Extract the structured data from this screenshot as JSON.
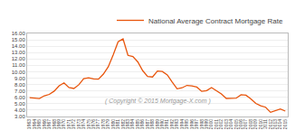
{
  "chart_data": {
    "type": "line",
    "annotations": [
      "( Copyright © 2015 Mortgage-X.com )"
    ],
    "x": [
      1963,
      1964,
      1965,
      1966,
      1967,
      1968,
      1969,
      1970,
      1971,
      1972,
      1973,
      1974,
      1975,
      1976,
      1977,
      1978,
      1979,
      1980,
      1981,
      1982,
      1983,
      1984,
      1985,
      1986,
      1987,
      1988,
      1989,
      1990,
      1991,
      1992,
      1993,
      1994,
      1995,
      1996,
      1997,
      1998,
      1999,
      2000,
      2001,
      2002,
      2003,
      2004,
      2005,
      2006,
      2007,
      2008,
      2009,
      2010,
      2011,
      2012,
      2013,
      2014,
      2015
    ],
    "series": [
      {
        "name": "National Average Contract Mortgage Rate",
        "color": "#e8550c",
        "values": [
          5.94,
          5.83,
          5.81,
          6.25,
          6.46,
          6.97,
          7.81,
          8.27,
          7.54,
          7.38,
          7.96,
          8.92,
          9.05,
          8.87,
          8.85,
          9.64,
          10.78,
          12.66,
          14.7,
          15.14,
          12.57,
          12.38,
          11.55,
          10.17,
          9.28,
          9.19,
          10.11,
          10.05,
          9.51,
          8.39,
          7.33,
          7.49,
          7.87,
          7.8,
          7.6,
          6.94,
          7.04,
          7.52,
          6.97,
          6.54,
          5.83,
          5.84,
          5.87,
          6.41,
          6.34,
          5.76,
          5.04,
          4.69,
          4.45,
          3.66,
          3.92,
          4.17,
          3.85
        ]
      }
    ],
    "xlim": [
      1962.5,
      2015.5
    ],
    "xticks": [
      1963,
      1964,
      1965,
      1966,
      1967,
      1968,
      1969,
      1970,
      1971,
      1972,
      1973,
      1974,
      1975,
      1976,
      1977,
      1978,
      1979,
      1980,
      1981,
      1982,
      1983,
      1984,
      1985,
      1986,
      1987,
      1988,
      1989,
      1990,
      1991,
      1992,
      1993,
      1994,
      1995,
      1996,
      1997,
      1998,
      1999,
      2000,
      2001,
      2002,
      2003,
      2004,
      2005,
      2006,
      2007,
      2008,
      2009,
      2010,
      2011,
      2012,
      2013,
      2014,
      2015
    ],
    "ylim": [
      3.0,
      16.0
    ],
    "yticks": [
      {
        "value": 3.0,
        "label": "3.00"
      },
      {
        "value": 4.0,
        "label": "4.00"
      },
      {
        "value": 5.0,
        "label": "5.00"
      },
      {
        "value": 6.0,
        "label": "6.00"
      },
      {
        "value": 7.0,
        "label": "7.00"
      },
      {
        "value": 8.0,
        "label": "8.00"
      },
      {
        "value": 9.0,
        "label": "9.00"
      },
      {
        "value": 10.0,
        "label": "10.00"
      },
      {
        "value": 11.0,
        "label": "11.00"
      },
      {
        "value": 12.0,
        "label": "12.00"
      },
      {
        "value": 13.0,
        "label": "13.00"
      },
      {
        "value": 14.0,
        "label": "14.00"
      },
      {
        "value": 15.0,
        "label": "15.00"
      },
      {
        "value": 16.0,
        "label": "16.00"
      }
    ],
    "grid": "y",
    "legend": "upper right"
  }
}
